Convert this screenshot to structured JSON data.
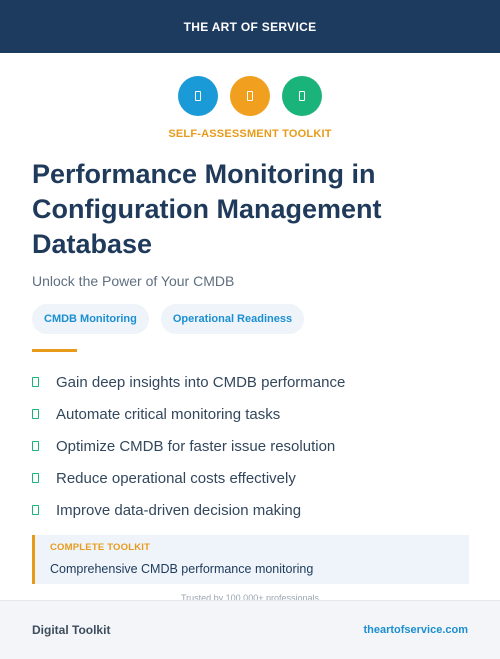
{
  "header": {
    "brand": "THE ART OF SERVICE"
  },
  "icons": [
    {
      "name": "blue-circle-icon",
      "color": "#1a9ad6"
    },
    {
      "name": "orange-circle-icon",
      "color": "#f0a01e"
    },
    {
      "name": "green-circle-icon",
      "color": "#1ab47a"
    }
  ],
  "kicker": "SELF-ASSESSMENT TOOLKIT",
  "title": "Performance Monitoring in Configuration Management Database",
  "subtitle": "Unlock the Power of Your CMDB",
  "tags": [
    "CMDB Monitoring",
    "Operational Readiness"
  ],
  "benefits": [
    "Gain deep insights into CMDB performance",
    "Automate critical monitoring tasks",
    "Optimize CMDB for faster issue resolution",
    "Reduce operational costs effectively",
    "Improve data-driven decision making"
  ],
  "callout": {
    "label": "COMPLETE TOOLKIT",
    "text": "Comprehensive CMDB performance monitoring"
  },
  "trusted": "Trusted by 100,000+ professionals",
  "footer": {
    "left": "Digital Toolkit",
    "right": "theartofservice.com"
  },
  "colors": {
    "header_bg": "#1d3a5f",
    "accent": "#e89b1a",
    "link": "#1b8fd0",
    "check": "#19b37a"
  }
}
